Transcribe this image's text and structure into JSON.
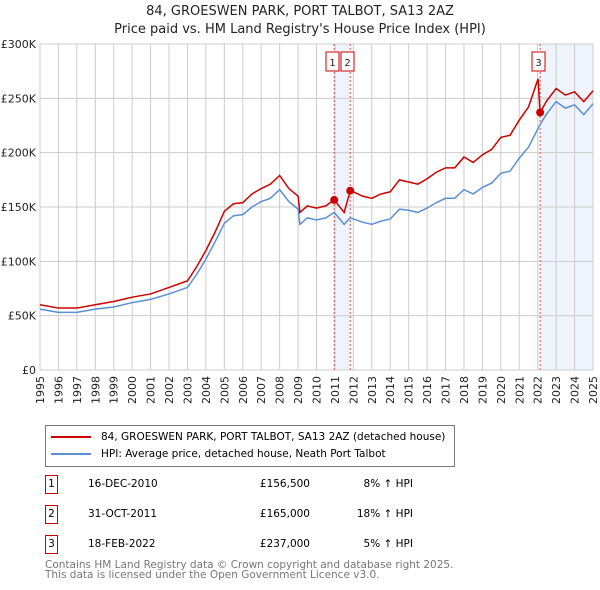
{
  "title": "84, GROESWEN PARK, PORT TALBOT, SA13 2AZ",
  "subtitle": "Price paid vs. HM Land Registry's House Price Index (HPI)",
  "chart_data": {
    "type": "line",
    "ylim": [
      0,
      300000
    ],
    "xlim": [
      1995,
      2025
    ],
    "yticks": [
      {
        "v": 0,
        "label": "£0"
      },
      {
        "v": 50000,
        "label": "£50K"
      },
      {
        "v": 100000,
        "label": "£100K"
      },
      {
        "v": 150000,
        "label": "£150K"
      },
      {
        "v": 200000,
        "label": "£200K"
      },
      {
        "v": 250000,
        "label": "£250K"
      },
      {
        "v": 300000,
        "label": "£300K"
      }
    ],
    "xticks": [
      "1995",
      "1996",
      "1997",
      "1998",
      "1999",
      "2000",
      "2001",
      "2002",
      "2003",
      "2004",
      "2005",
      "2006",
      "2007",
      "2008",
      "2009",
      "2010",
      "2011",
      "2012",
      "2013",
      "2014",
      "2015",
      "2016",
      "2017",
      "2018",
      "2019",
      "2020",
      "2021",
      "2022",
      "2023",
      "2024",
      "2025"
    ],
    "series": [
      {
        "name": "84, GROESWEN PARK, PORT TALBOT, SA13 2AZ (detached house)",
        "color": "#cc0000",
        "x": [
          1995,
          1996,
          1997,
          1998,
          1999,
          2000,
          2001,
          2002,
          2003,
          2003.5,
          2004,
          2004.5,
          2005,
          2005.5,
          2006,
          2006.5,
          2007,
          2007.5,
          2008,
          2008.5,
          2009,
          2009.1,
          2009.5,
          2010,
          2010.5,
          2010.96,
          2011.5,
          2011.83,
          2012,
          2012.5,
          2013,
          2013.5,
          2014,
          2014.5,
          2015,
          2015.5,
          2016,
          2016.5,
          2017,
          2017.5,
          2018,
          2018.5,
          2019,
          2019.5,
          2020,
          2020.5,
          2021,
          2021.5,
          2022.02,
          2022.13,
          2022.5,
          2023,
          2023.5,
          2024,
          2024.5,
          2025
        ],
        "y": [
          60,
          57,
          57,
          60,
          63,
          67,
          70,
          76,
          82,
          95,
          110,
          127,
          146,
          153,
          154,
          162,
          167,
          171,
          179,
          167,
          160,
          145,
          151,
          149,
          151,
          156.5,
          145,
          165,
          164,
          160,
          158,
          162,
          164,
          175,
          173,
          171,
          176,
          182,
          186,
          186,
          196,
          191,
          198,
          203,
          214,
          216,
          230,
          242,
          268,
          237,
          248,
          259,
          253,
          256,
          247,
          257
        ]
      },
      {
        "name": "HPI: Average price, detached house, Neath Port Talbot",
        "color": "#5b8fd4",
        "x": [
          1995,
          1996,
          1997,
          1998,
          1999,
          2000,
          2001,
          2002,
          2003,
          2003.5,
          2004,
          2004.5,
          2005,
          2005.5,
          2006,
          2006.5,
          2007,
          2007.5,
          2008,
          2008.5,
          2009,
          2009.1,
          2009.5,
          2010,
          2010.5,
          2010.96,
          2011.5,
          2011.83,
          2012,
          2012.5,
          2013,
          2013.5,
          2014,
          2014.5,
          2015,
          2015.5,
          2016,
          2016.5,
          2017,
          2017.5,
          2018,
          2018.5,
          2019,
          2019.5,
          2020,
          2020.5,
          2021,
          2021.5,
          2022.13,
          2022.5,
          2023,
          2023.5,
          2024,
          2024.5,
          2025
        ],
        "y": [
          56,
          53,
          53,
          56,
          58,
          62,
          65,
          70,
          76,
          88,
          102,
          118,
          135,
          142,
          143,
          150,
          155,
          158,
          166,
          155,
          148,
          134,
          140,
          138,
          140,
          145,
          134,
          140,
          139,
          136,
          134,
          137,
          139,
          148,
          147,
          145,
          149,
          154,
          158,
          158,
          166,
          162,
          168,
          172,
          181,
          183,
          195,
          205,
          226,
          236,
          247,
          241,
          244,
          235,
          245
        ]
      }
    ],
    "y_units": "thousands GBP",
    "sales": [
      {
        "n": "1",
        "x": 2010.96,
        "y": 156.5
      },
      {
        "n": "2",
        "x": 2011.83,
        "y": 165
      },
      {
        "n": "3",
        "x": 2022.13,
        "y": 237
      }
    ],
    "shaded": [
      [
        2010.96,
        2011.83
      ],
      [
        2022.13,
        2025
      ]
    ]
  },
  "transactions": [
    {
      "n": "1",
      "date": "16-DEC-2010",
      "price": "£156,500",
      "hpi": "8% ↑ HPI"
    },
    {
      "n": "2",
      "date": "31-OCT-2011",
      "price": "£165,000",
      "hpi": "18% ↑ HPI"
    },
    {
      "n": "3",
      "date": "18-FEB-2022",
      "price": "£237,000",
      "hpi": "5% ↑ HPI"
    }
  ],
  "footer": [
    "Contains HM Land Registry data © Crown copyright and database right 2025.",
    "This data is licensed under the Open Government Licence v3.0."
  ]
}
